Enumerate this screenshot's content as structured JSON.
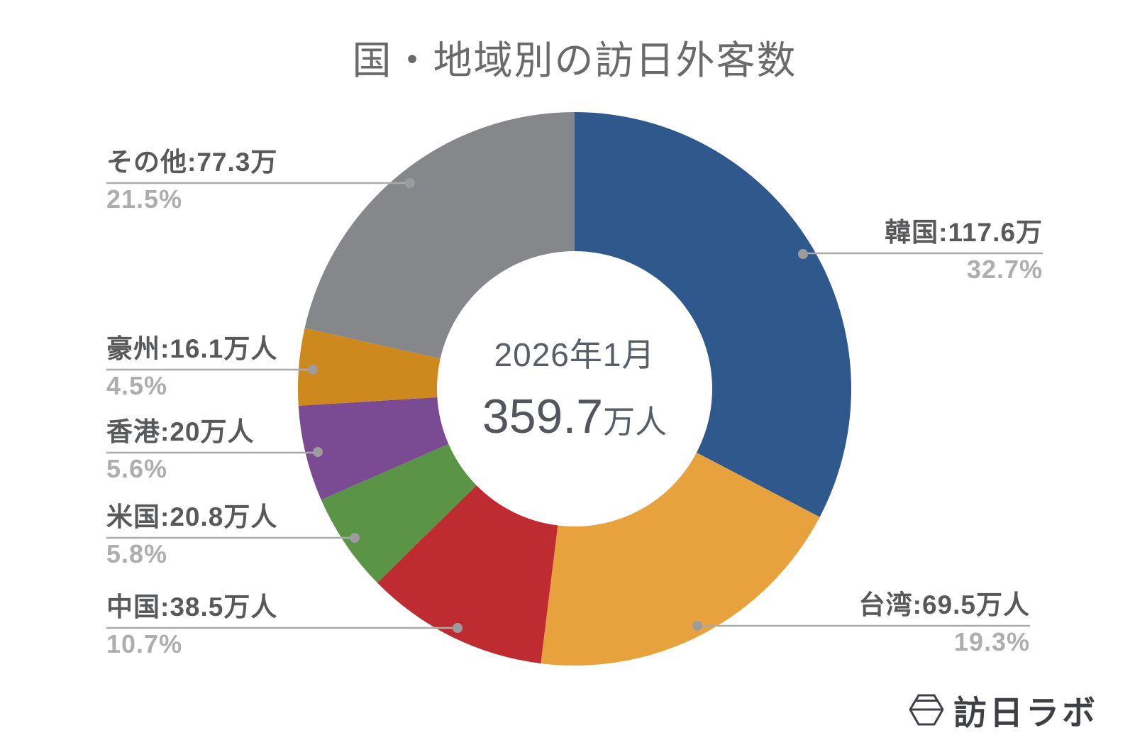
{
  "chart_data": {
    "type": "donut",
    "title": "国・地域別の訪日外客数",
    "center": {
      "period": "2026年1月",
      "value": "359.7",
      "unit": "万人"
    },
    "total": 359.7,
    "unit": "万人",
    "start_angle_deg": 0,
    "direction": "clockwise",
    "legend": "none",
    "segments": [
      {
        "name": "韓国",
        "value": 117.6,
        "pct": 32.7,
        "label_text": "韓国:117.6万",
        "pct_text": "32.7%",
        "color": "#2F588C"
      },
      {
        "name": "台湾",
        "value": 69.5,
        "pct": 19.3,
        "label_text": "台湾:69.5万人",
        "pct_text": "19.3%",
        "color": "#E8A23D"
      },
      {
        "name": "中国",
        "value": 38.5,
        "pct": 10.7,
        "label_text": "中国:38.5万人",
        "pct_text": "10.7%",
        "color": "#BE2C32"
      },
      {
        "name": "米国",
        "value": 20.8,
        "pct": 5.8,
        "label_text": "米国:20.8万人",
        "pct_text": "5.8%",
        "color": "#5A9447"
      },
      {
        "name": "香港",
        "value": 20.0,
        "pct": 5.6,
        "label_text": "香港:20万人",
        "pct_text": "5.6%",
        "color": "#7A4A93"
      },
      {
        "name": "豪州",
        "value": 16.1,
        "pct": 4.5,
        "label_text": "豪州:16.1万人",
        "pct_text": "4.5%",
        "color": "#CD891D"
      },
      {
        "name": "その他",
        "value": 77.3,
        "pct": 21.5,
        "label_text": "その他:77.3万",
        "pct_text": "21.5%",
        "color": "#85878A"
      }
    ],
    "leader_line_color": "#ABABAB",
    "leader_dot_color": "#9C9C9C"
  },
  "branding": {
    "logo_text": "訪日ラボ"
  }
}
